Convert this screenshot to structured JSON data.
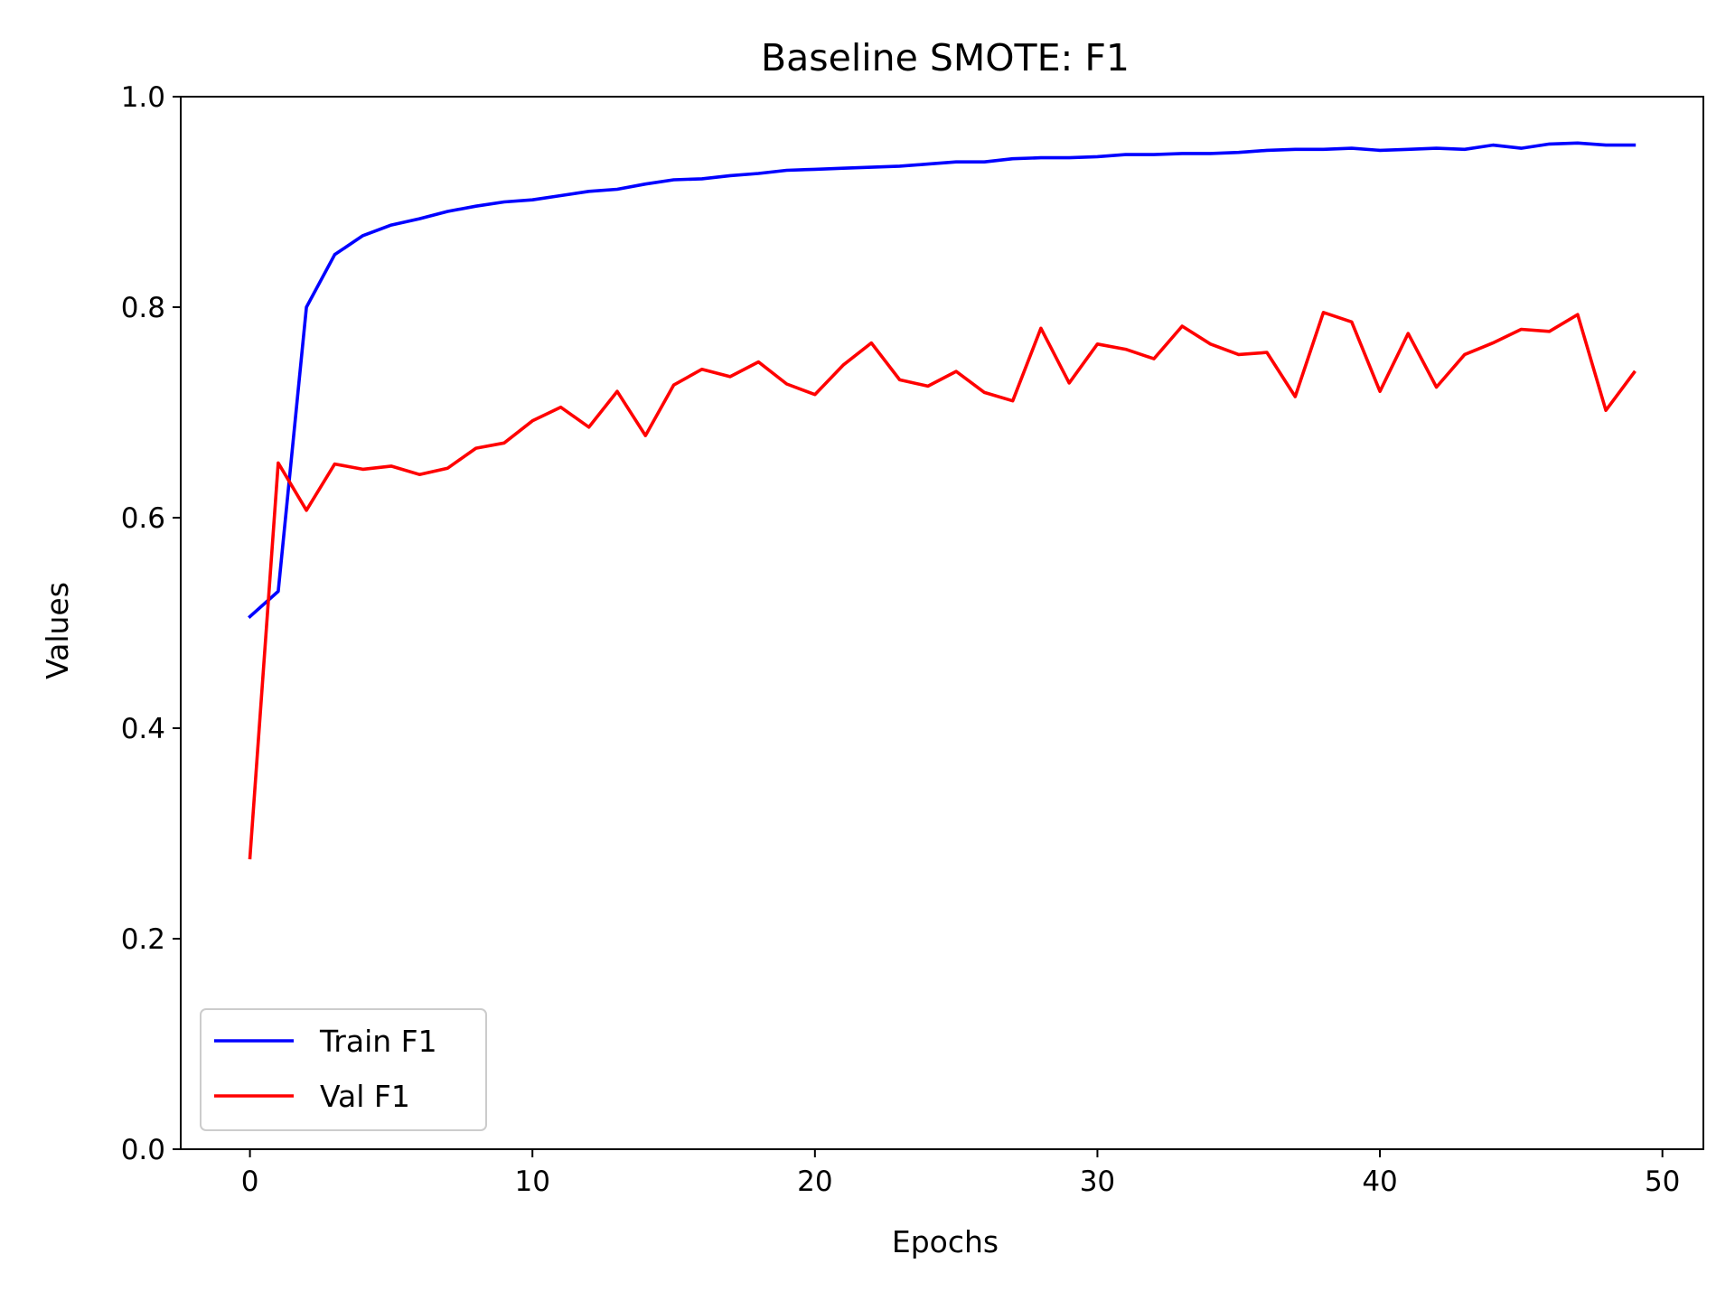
{
  "chart_data": {
    "type": "line",
    "title": "Baseline SMOTE: F1",
    "xlabel": "Epochs",
    "ylabel": "Values",
    "xlim": [
      -2.45,
      51.45
    ],
    "ylim": [
      0.0,
      1.0
    ],
    "x_ticks": [
      0,
      10,
      20,
      30,
      40,
      50
    ],
    "y_ticks": [
      0.0,
      0.2,
      0.4,
      0.6,
      0.8,
      1.0
    ],
    "x_tick_labels": [
      "0",
      "10",
      "20",
      "30",
      "40",
      "50"
    ],
    "y_tick_labels": [
      "0.0",
      "0.2",
      "0.4",
      "0.6",
      "0.8",
      "1.0"
    ],
    "grid": false,
    "legend_position": "lower-left",
    "x": [
      0,
      1,
      2,
      3,
      4,
      5,
      6,
      7,
      8,
      9,
      10,
      11,
      12,
      13,
      14,
      15,
      16,
      17,
      18,
      19,
      20,
      21,
      22,
      23,
      24,
      25,
      26,
      27,
      28,
      29,
      30,
      31,
      32,
      33,
      34,
      35,
      36,
      37,
      38,
      39,
      40,
      41,
      42,
      43,
      44,
      45,
      46,
      47,
      48,
      49
    ],
    "series": [
      {
        "name": "Train F1",
        "color": "#0000ff",
        "values": [
          0.506,
          0.53,
          0.8,
          0.85,
          0.868,
          0.878,
          0.884,
          0.891,
          0.896,
          0.9,
          0.902,
          0.906,
          0.91,
          0.912,
          0.917,
          0.921,
          0.922,
          0.925,
          0.927,
          0.93,
          0.931,
          0.932,
          0.933,
          0.934,
          0.936,
          0.938,
          0.938,
          0.941,
          0.942,
          0.942,
          0.943,
          0.945,
          0.945,
          0.946,
          0.946,
          0.947,
          0.949,
          0.95,
          0.95,
          0.951,
          0.949,
          0.95,
          0.951,
          0.95,
          0.954,
          0.951,
          0.955,
          0.956,
          0.954,
          0.954
        ]
      },
      {
        "name": "Val F1",
        "color": "#ff0000",
        "values": [
          0.277,
          0.652,
          0.607,
          0.651,
          0.646,
          0.649,
          0.641,
          0.647,
          0.666,
          0.671,
          0.692,
          0.705,
          0.686,
          0.72,
          0.678,
          0.726,
          0.741,
          0.734,
          0.748,
          0.727,
          0.717,
          0.745,
          0.766,
          0.731,
          0.725,
          0.739,
          0.719,
          0.711,
          0.78,
          0.728,
          0.765,
          0.76,
          0.751,
          0.782,
          0.765,
          0.755,
          0.757,
          0.715,
          0.795,
          0.786,
          0.72,
          0.775,
          0.724,
          0.755,
          0.766,
          0.779,
          0.777,
          0.793,
          0.702,
          0.738
        ]
      }
    ]
  }
}
